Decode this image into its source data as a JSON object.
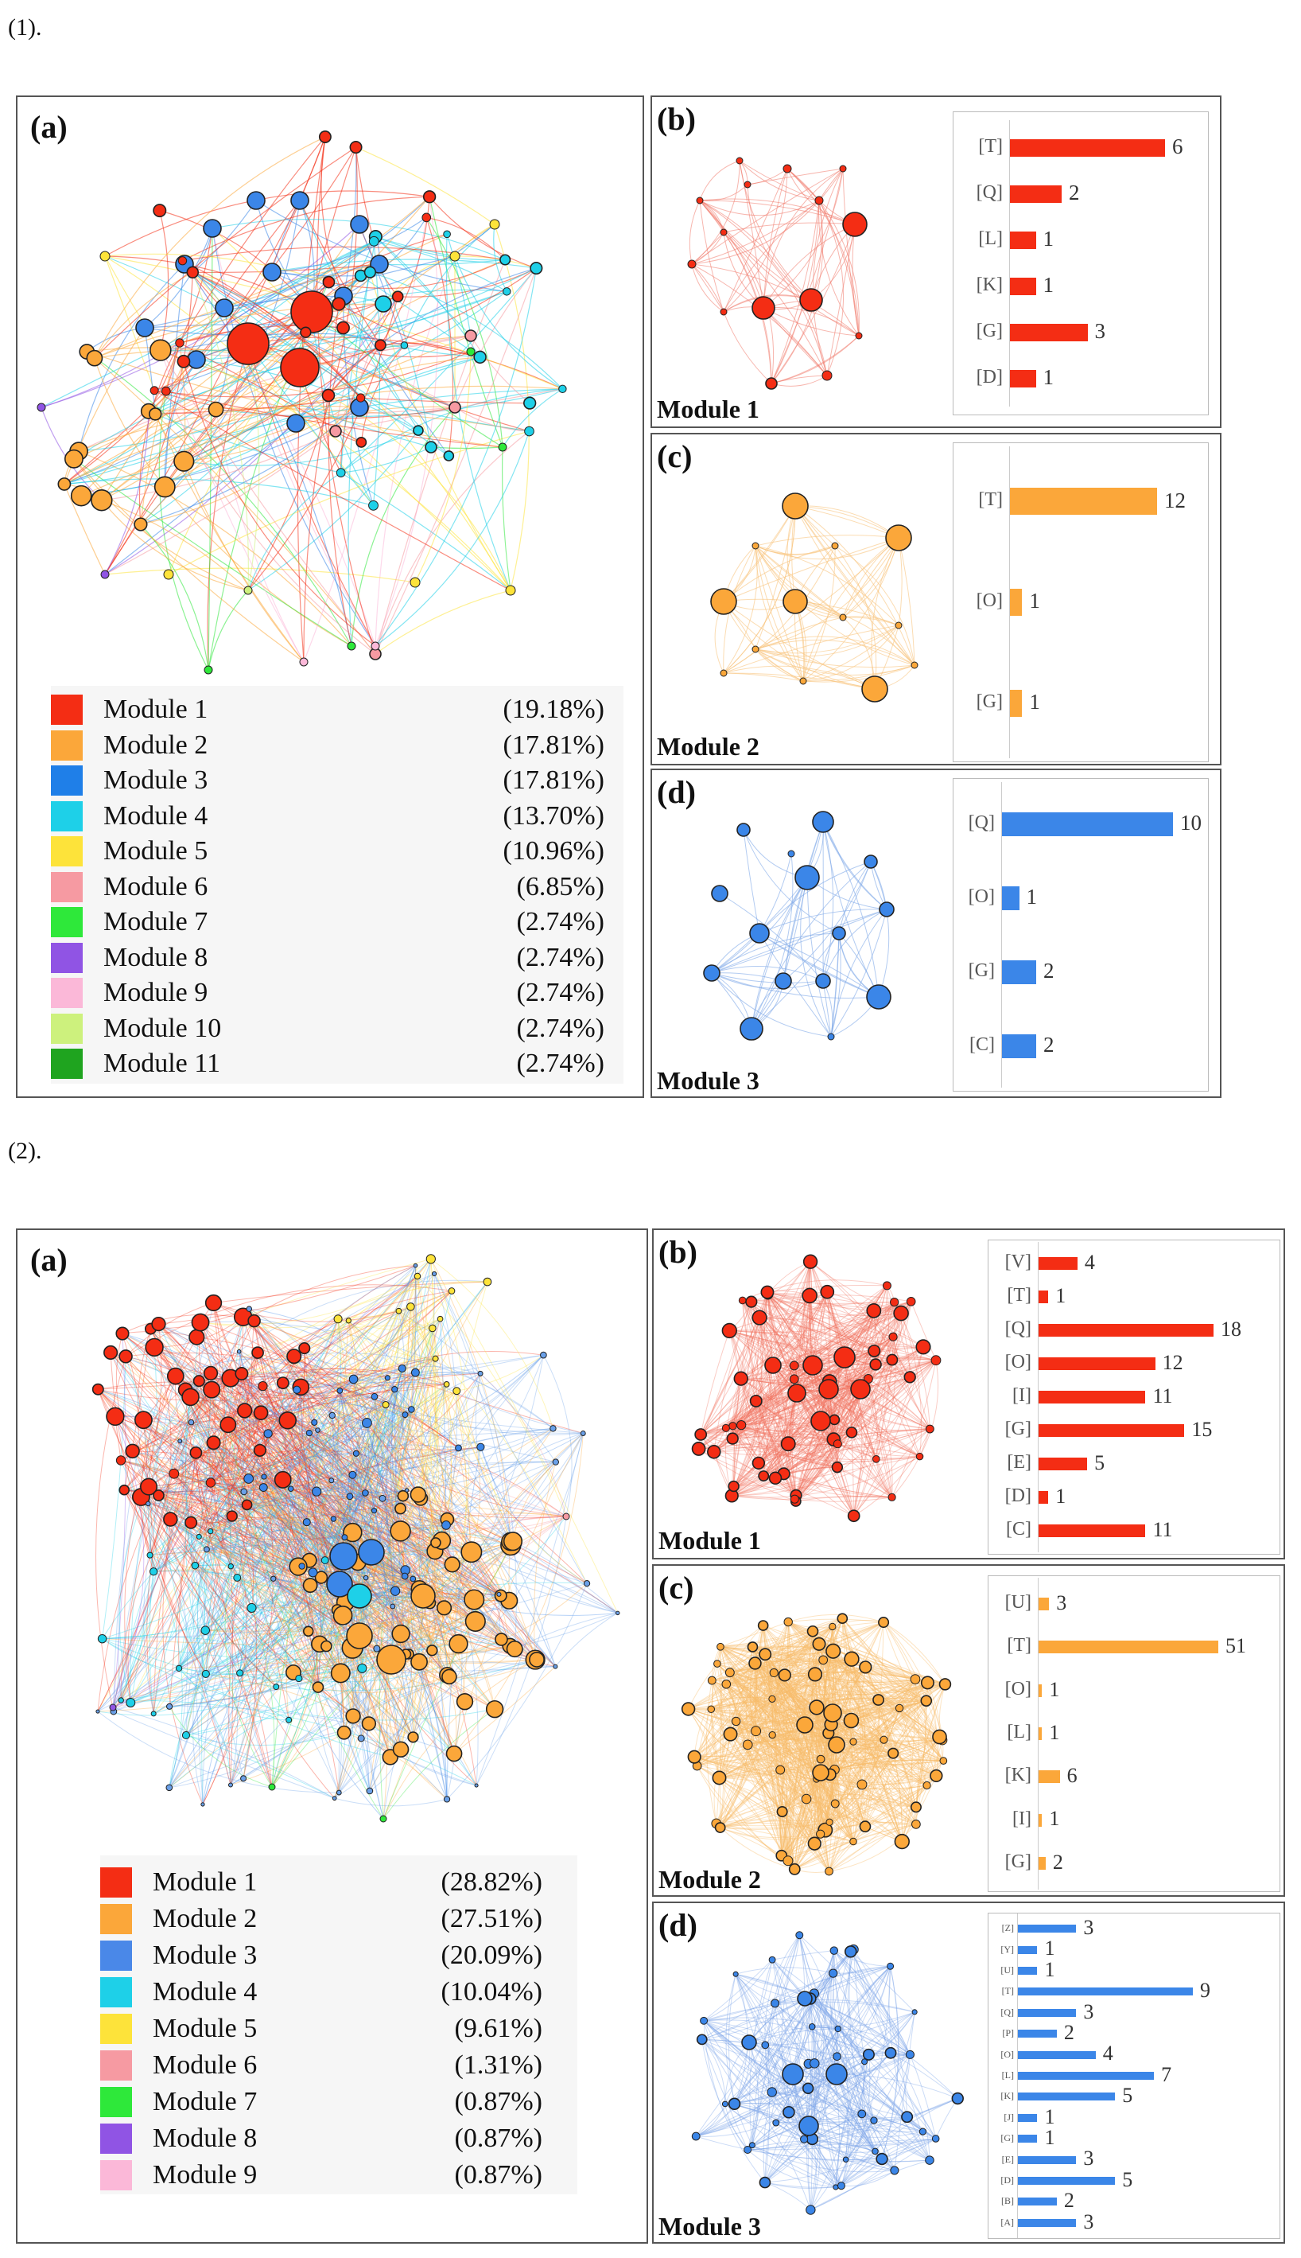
{
  "figure": {
    "part1_label": "(1).",
    "part2_label": "(2).",
    "colors": {
      "red": "#f42d14",
      "orange": "#fba73a",
      "blue": "#3b86e8",
      "cyan": "#1ed0e8",
      "yellow": "#fde33a",
      "pink": "#f69aa2",
      "green": "#2ee83a",
      "purple": "#9054e4",
      "lightpink": "#fbb8d8",
      "lime": "#cdf17d",
      "darkgreen": "#1fa41f"
    }
  },
  "part1": {
    "a": {
      "tag": "(a)",
      "legend": [
        {
          "name": "Module 1",
          "pct": "(19.18%)",
          "color": "#f42d14"
        },
        {
          "name": "Module 2",
          "pct": "(17.81%)",
          "color": "#fba73a"
        },
        {
          "name": "Module 3",
          "pct": "(17.81%)",
          "color": "#1f7fe8"
        },
        {
          "name": "Module 4",
          "pct": "(13.70%)",
          "color": "#1ed0e8"
        },
        {
          "name": "Module 5",
          "pct": "(10.96%)",
          "color": "#fde33a"
        },
        {
          "name": "Module 6",
          "pct": "(6.85%)",
          "color": "#f69aa2"
        },
        {
          "name": "Module 7",
          "pct": "(2.74%)",
          "color": "#2ee83a"
        },
        {
          "name": "Module 8",
          "pct": "(2.74%)",
          "color": "#9054e4"
        },
        {
          "name": "Module 9",
          "pct": "(2.74%)",
          "color": "#fbb8d8"
        },
        {
          "name": "Module 10",
          "pct": "(2.74%)",
          "color": "#cdf17d"
        },
        {
          "name": "Module 11",
          "pct": "(2.74%)",
          "color": "#1fa41f"
        }
      ]
    },
    "b": {
      "tag": "(b)",
      "module": "Module 1",
      "color": "#f42d14",
      "bars": [
        {
          "label": "[T]",
          "value": "6"
        },
        {
          "label": "[Q]",
          "value": "2"
        },
        {
          "label": "[L]",
          "value": "1"
        },
        {
          "label": "[K]",
          "value": "1"
        },
        {
          "label": "[G]",
          "value": "3"
        },
        {
          "label": "[D]",
          "value": "1"
        }
      ]
    },
    "c": {
      "tag": "(c)",
      "module": "Module 2",
      "color": "#fba73a",
      "bars": [
        {
          "label": "[T]",
          "value": "12"
        },
        {
          "label": "[O]",
          "value": "1"
        },
        {
          "label": "[G]",
          "value": "1"
        }
      ]
    },
    "d": {
      "tag": "(d)",
      "module": "Module 3",
      "color": "#3b86e8",
      "bars": [
        {
          "label": "[Q]",
          "value": "10"
        },
        {
          "label": "[O]",
          "value": "1"
        },
        {
          "label": "[G]",
          "value": "2"
        },
        {
          "label": "[C]",
          "value": "2"
        }
      ]
    }
  },
  "part2": {
    "a": {
      "tag": "(a)",
      "legend": [
        {
          "name": "Module 1",
          "pct": "(28.82%)",
          "color": "#f42d14"
        },
        {
          "name": "Module 2",
          "pct": "(27.51%)",
          "color": "#fba73a"
        },
        {
          "name": "Module 3",
          "pct": "(20.09%)",
          "color": "#4a88e8"
        },
        {
          "name": "Module 4",
          "pct": "(10.04%)",
          "color": "#1ed0e8"
        },
        {
          "name": "Module 5",
          "pct": "(9.61%)",
          "color": "#fde33a"
        },
        {
          "name": "Module 6",
          "pct": "(1.31%)",
          "color": "#f69aa2"
        },
        {
          "name": "Module 7",
          "pct": "(0.87%)",
          "color": "#2ee83a"
        },
        {
          "name": "Module 8",
          "pct": "(0.87%)",
          "color": "#9054e4"
        },
        {
          "name": "Module 9",
          "pct": "(0.87%)",
          "color": "#fbb8d8"
        }
      ]
    },
    "b": {
      "tag": "(b)",
      "module": "Module 1",
      "color": "#f42d14",
      "bars": [
        {
          "label": "[V]",
          "value": "4"
        },
        {
          "label": "[T]",
          "value": "1"
        },
        {
          "label": "[Q]",
          "value": "18"
        },
        {
          "label": "[O]",
          "value": "12"
        },
        {
          "label": "[I]",
          "value": "11"
        },
        {
          "label": "[G]",
          "value": "15"
        },
        {
          "label": "[E]",
          "value": "5"
        },
        {
          "label": "[D]",
          "value": "1"
        },
        {
          "label": "[C]",
          "value": "11"
        }
      ]
    },
    "c": {
      "tag": "(c)",
      "module": "Module 2",
      "color": "#fba73a",
      "bars": [
        {
          "label": "[U]",
          "value": "3"
        },
        {
          "label": "[T]",
          "value": "51"
        },
        {
          "label": "[O]",
          "value": "1"
        },
        {
          "label": "[L]",
          "value": "1"
        },
        {
          "label": "[K]",
          "value": "6"
        },
        {
          "label": "[I]",
          "value": "1"
        },
        {
          "label": "[G]",
          "value": "2"
        }
      ]
    },
    "d": {
      "tag": "(d)",
      "module": "Module 3",
      "color": "#3b86e8",
      "bars": [
        {
          "label": "[Z]",
          "value": "3"
        },
        {
          "label": "[Y]",
          "value": "1"
        },
        {
          "label": "[U]",
          "value": "1"
        },
        {
          "label": "[T]",
          "value": "9"
        },
        {
          "label": "[Q]",
          "value": "3"
        },
        {
          "label": "[P]",
          "value": "2"
        },
        {
          "label": "[O]",
          "value": "4"
        },
        {
          "label": "[L]",
          "value": "7"
        },
        {
          "label": "[K]",
          "value": "5"
        },
        {
          "label": "[J]",
          "value": "1"
        },
        {
          "label": "[G]",
          "value": "1"
        },
        {
          "label": "[E]",
          "value": "3"
        },
        {
          "label": "[D]",
          "value": "5"
        },
        {
          "label": "[B]",
          "value": "2"
        },
        {
          "label": "[A]",
          "value": "3"
        }
      ]
    }
  }
}
